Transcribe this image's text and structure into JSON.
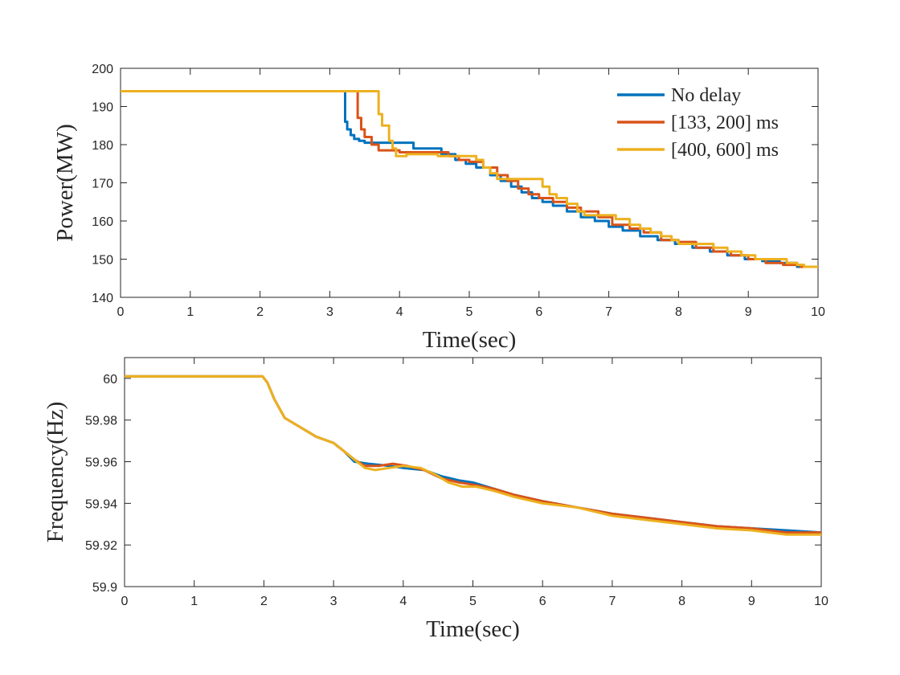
{
  "chart_data": [
    {
      "type": "line",
      "title": "",
      "xlabel": "Time(sec)",
      "ylabel": "Power(MW)",
      "xlim": [
        0,
        10
      ],
      "ylim": [
        140,
        200
      ],
      "xticks": [
        0,
        1,
        2,
        3,
        4,
        5,
        6,
        7,
        8,
        9,
        10
      ],
      "yticks": [
        140,
        150,
        160,
        170,
        180,
        190,
        200
      ],
      "grid": false,
      "legend_position": "top-right",
      "series": [
        {
          "name": "No delay",
          "color": "#0072BD",
          "step": true,
          "points": [
            [
              0,
              194
            ],
            [
              3.22,
              194
            ],
            [
              3.22,
              186
            ],
            [
              3.25,
              184
            ],
            [
              3.3,
              182.5
            ],
            [
              3.35,
              181.5
            ],
            [
              3.42,
              181
            ],
            [
              3.5,
              180.5
            ],
            [
              3.6,
              180.5
            ],
            [
              4.2,
              180.5
            ],
            [
              4.2,
              179
            ],
            [
              4.5,
              179
            ],
            [
              4.6,
              177.5
            ],
            [
              4.8,
              176
            ],
            [
              4.95,
              175
            ],
            [
              5.1,
              174
            ],
            [
              5.3,
              172
            ],
            [
              5.45,
              170.5
            ],
            [
              5.6,
              169
            ],
            [
              5.75,
              167.5
            ],
            [
              5.9,
              166
            ],
            [
              6.05,
              165
            ],
            [
              6.2,
              164
            ],
            [
              6.4,
              162.5
            ],
            [
              6.6,
              161
            ],
            [
              6.8,
              160
            ],
            [
              7.0,
              158.5
            ],
            [
              7.2,
              157.5
            ],
            [
              7.45,
              156
            ],
            [
              7.7,
              155
            ],
            [
              7.95,
              154
            ],
            [
              8.2,
              153
            ],
            [
              8.45,
              152
            ],
            [
              8.7,
              151
            ],
            [
              8.95,
              150
            ],
            [
              9.2,
              149.5
            ],
            [
              9.45,
              149
            ],
            [
              9.7,
              148
            ],
            [
              10,
              148
            ]
          ]
        },
        {
          "name": "[133, 200] ms",
          "color": "#D95319",
          "step": true,
          "points": [
            [
              0,
              194
            ],
            [
              3.4,
              194
            ],
            [
              3.4,
              187
            ],
            [
              3.45,
              184
            ],
            [
              3.5,
              182
            ],
            [
              3.6,
              180
            ],
            [
              3.7,
              178.5
            ],
            [
              4.0,
              178.5
            ],
            [
              4.0,
              178
            ],
            [
              4.6,
              178
            ],
            [
              4.7,
              177
            ],
            [
              4.85,
              176
            ],
            [
              5.0,
              175.5
            ],
            [
              5.2,
              174
            ],
            [
              5.4,
              172
            ],
            [
              5.55,
              170.5
            ],
            [
              5.7,
              168.5
            ],
            [
              5.85,
              167
            ],
            [
              6.0,
              166
            ],
            [
              6.2,
              165
            ],
            [
              6.4,
              163.5
            ],
            [
              6.6,
              162.5
            ],
            [
              6.85,
              161
            ],
            [
              7.05,
              159
            ],
            [
              7.3,
              158
            ],
            [
              7.5,
              157
            ],
            [
              7.75,
              155
            ],
            [
              8.0,
              154.5
            ],
            [
              8.25,
              153
            ],
            [
              8.5,
              152
            ],
            [
              8.75,
              151
            ],
            [
              9.0,
              150
            ],
            [
              9.25,
              149
            ],
            [
              9.5,
              148.5
            ],
            [
              9.75,
              148
            ],
            [
              10,
              148
            ]
          ]
        },
        {
          "name": "[400, 600] ms",
          "color": "#EDB120",
          "step": true,
          "points": [
            [
              0,
              194
            ],
            [
              3.7,
              194
            ],
            [
              3.7,
              188
            ],
            [
              3.75,
              185
            ],
            [
              3.85,
              181
            ],
            [
              3.9,
              179
            ],
            [
              3.95,
              177
            ],
            [
              4.05,
              177
            ],
            [
              4.1,
              177.5
            ],
            [
              4.3,
              177.5
            ],
            [
              4.5,
              177.5
            ],
            [
              4.55,
              177
            ],
            [
              5.0,
              177
            ],
            [
              5.1,
              176
            ],
            [
              5.2,
              174
            ],
            [
              5.3,
              172.5
            ],
            [
              5.4,
              171
            ],
            [
              6.0,
              171
            ],
            [
              6.05,
              169
            ],
            [
              6.15,
              167
            ],
            [
              6.25,
              166
            ],
            [
              6.4,
              164.5
            ],
            [
              6.55,
              162.5
            ],
            [
              6.65,
              161.5
            ],
            [
              7.0,
              161.5
            ],
            [
              7.1,
              160.5
            ],
            [
              7.3,
              159
            ],
            [
              7.45,
              158
            ],
            [
              7.6,
              157
            ],
            [
              7.75,
              156
            ],
            [
              7.9,
              155
            ],
            [
              8.0,
              154
            ],
            [
              8.4,
              154
            ],
            [
              8.5,
              153
            ],
            [
              8.7,
              152
            ],
            [
              8.9,
              151
            ],
            [
              9.1,
              150
            ],
            [
              9.4,
              150
            ],
            [
              9.55,
              149
            ],
            [
              9.7,
              148.5
            ],
            [
              9.8,
              148
            ],
            [
              10,
              148
            ]
          ]
        }
      ]
    },
    {
      "type": "line",
      "title": "",
      "xlabel": "Time(sec)",
      "ylabel": "Frequency(Hz)",
      "xlim": [
        0,
        10
      ],
      "ylim": [
        59.9,
        60.01
      ],
      "xticks": [
        0,
        1,
        2,
        3,
        4,
        5,
        6,
        7,
        8,
        9,
        10
      ],
      "yticks": [
        59.9,
        59.92,
        59.94,
        59.96,
        59.98,
        60
      ],
      "ytick_labels": [
        "59.9",
        "59.92",
        "59.94",
        "59.96",
        "59.98",
        "60"
      ],
      "grid": false,
      "legend_position": "none",
      "series": [
        {
          "name": "No delay",
          "color": "#0072BD",
          "points": [
            [
              0,
              60.001
            ],
            [
              1.98,
              60.001
            ],
            [
              2.05,
              59.998
            ],
            [
              2.15,
              59.99
            ],
            [
              2.3,
              59.981
            ],
            [
              2.5,
              59.977
            ],
            [
              2.75,
              59.972
            ],
            [
              3.0,
              59.969
            ],
            [
              3.15,
              59.965
            ],
            [
              3.3,
              59.96
            ],
            [
              3.5,
              59.959
            ],
            [
              3.8,
              59.958
            ],
            [
              4.0,
              59.957
            ],
            [
              4.3,
              59.956
            ],
            [
              4.55,
              59.953
            ],
            [
              4.8,
              59.951
            ],
            [
              5.0,
              59.95
            ],
            [
              5.3,
              59.947
            ],
            [
              5.6,
              59.944
            ],
            [
              6.0,
              59.941
            ],
            [
              6.5,
              59.938
            ],
            [
              7.0,
              59.935
            ],
            [
              7.5,
              59.933
            ],
            [
              8.0,
              59.931
            ],
            [
              8.5,
              59.929
            ],
            [
              9.0,
              59.928
            ],
            [
              9.5,
              59.927
            ],
            [
              10,
              59.926
            ]
          ]
        },
        {
          "name": "[133, 200] ms",
          "color": "#D95319",
          "points": [
            [
              0,
              60.001
            ],
            [
              1.98,
              60.001
            ],
            [
              2.05,
              59.998
            ],
            [
              2.15,
              59.99
            ],
            [
              2.3,
              59.981
            ],
            [
              2.5,
              59.977
            ],
            [
              2.75,
              59.972
            ],
            [
              3.0,
              59.969
            ],
            [
              3.15,
              59.965
            ],
            [
              3.3,
              59.961
            ],
            [
              3.45,
              59.958
            ],
            [
              3.65,
              59.958
            ],
            [
              3.85,
              59.959
            ],
            [
              4.05,
              59.958
            ],
            [
              4.3,
              59.956
            ],
            [
              4.55,
              59.952
            ],
            [
              4.8,
              59.95
            ],
            [
              5.0,
              59.949
            ],
            [
              5.3,
              59.947
            ],
            [
              5.6,
              59.944
            ],
            [
              6.0,
              59.941
            ],
            [
              6.5,
              59.938
            ],
            [
              7.0,
              59.935
            ],
            [
              7.5,
              59.933
            ],
            [
              8.0,
              59.931
            ],
            [
              8.5,
              59.929
            ],
            [
              9.0,
              59.928
            ],
            [
              9.5,
              59.926
            ],
            [
              10,
              59.926
            ]
          ]
        },
        {
          "name": "[400, 600] ms",
          "color": "#EDB120",
          "points": [
            [
              0,
              60.001
            ],
            [
              1.98,
              60.001
            ],
            [
              2.05,
              59.998
            ],
            [
              2.15,
              59.99
            ],
            [
              2.3,
              59.981
            ],
            [
              2.5,
              59.977
            ],
            [
              2.75,
              59.972
            ],
            [
              3.0,
              59.969
            ],
            [
              3.15,
              59.965
            ],
            [
              3.3,
              59.961
            ],
            [
              3.45,
              59.957
            ],
            [
              3.6,
              59.956
            ],
            [
              3.8,
              59.957
            ],
            [
              4.0,
              59.958
            ],
            [
              4.25,
              59.957
            ],
            [
              4.45,
              59.954
            ],
            [
              4.65,
              59.95
            ],
            [
              4.85,
              59.948
            ],
            [
              5.05,
              59.948
            ],
            [
              5.3,
              59.946
            ],
            [
              5.6,
              59.943
            ],
            [
              6.0,
              59.94
            ],
            [
              6.5,
              59.938
            ],
            [
              7.0,
              59.934
            ],
            [
              7.5,
              59.932
            ],
            [
              8.0,
              59.93
            ],
            [
              8.5,
              59.928
            ],
            [
              9.0,
              59.927
            ],
            [
              9.5,
              59.925
            ],
            [
              10,
              59.925
            ]
          ]
        }
      ]
    }
  ]
}
